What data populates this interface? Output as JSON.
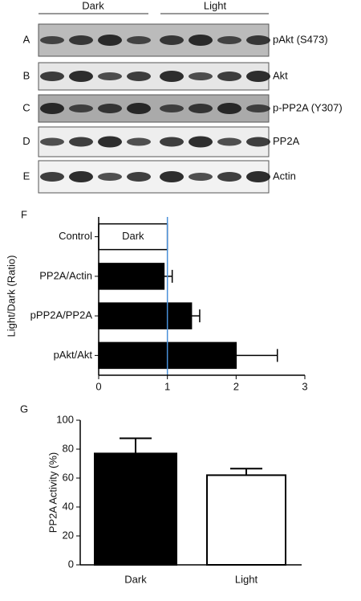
{
  "blots": {
    "groups": [
      "Dark",
      "Light"
    ],
    "panels": [
      {
        "letter": "A",
        "label": "pAkt (S473)"
      },
      {
        "letter": "B",
        "label": "Akt"
      },
      {
        "letter": "C",
        "label": "p-PP2A (Y307)"
      },
      {
        "letter": "D",
        "label": "PP2A"
      },
      {
        "letter": "E",
        "label": "Actin"
      }
    ]
  },
  "chart_data": [
    {
      "type": "hbar",
      "panel": "F",
      "ylabel": "Light/Dark (Ratio)",
      "annotation": "Dark",
      "categories": [
        "Control",
        "PP2A/Actin",
        "pPP2A/PP2A",
        "pAkt/Akt"
      ],
      "values": [
        1,
        0.95,
        1.35,
        2.0
      ],
      "errors": [
        null,
        0.12,
        0.12,
        0.6
      ],
      "colors": [
        "#ffffff",
        "#000000",
        "#000000",
        "#000000"
      ],
      "xlim": [
        0,
        3
      ],
      "xticks": [
        0,
        1,
        2,
        3
      ],
      "reference_line": {
        "value": 1,
        "color": "#4a90d9"
      }
    },
    {
      "type": "bar",
      "panel": "G",
      "ylabel": "PP2A Activity (%)",
      "categories": [
        "Dark",
        "Light"
      ],
      "values": [
        77,
        62
      ],
      "errors": [
        10.5,
        4.5
      ],
      "colors": [
        "#000000",
        "#ffffff"
      ],
      "ylim": [
        0,
        100
      ],
      "yticks": [
        0,
        20,
        40,
        60,
        80,
        100
      ]
    }
  ]
}
